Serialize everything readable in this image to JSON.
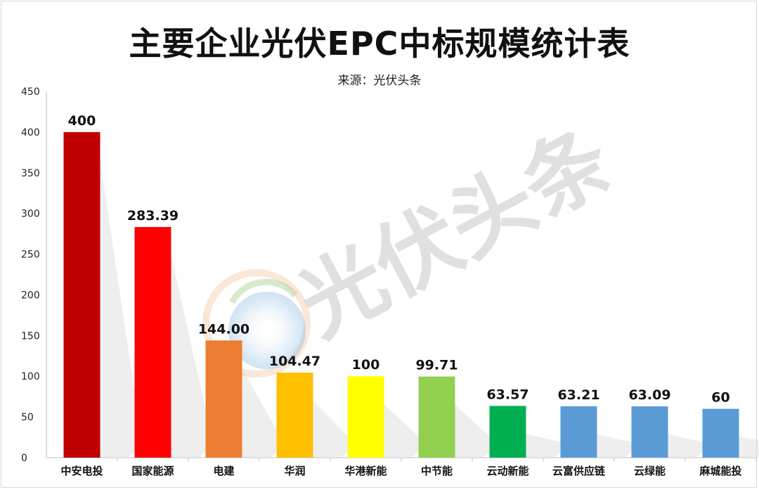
{
  "chart_data": {
    "type": "bar",
    "title": "主要企业光伏EPC中标规模统计表",
    "subtitle": "来源：光伏头条",
    "watermark": "光伏头条",
    "categories": [
      "中安电投",
      "国家能源",
      "电建",
      "华润",
      "华港新能",
      "中节能",
      "云动新能",
      "云富供应链",
      "云绿能",
      "麻城能投"
    ],
    "values": [
      400,
      283.39,
      144.0,
      104.47,
      100,
      99.71,
      63.57,
      63.21,
      63.09,
      60
    ],
    "value_labels": [
      "400",
      "283.39",
      "144.00",
      "104.47",
      "100",
      "99.71",
      "63.57",
      "63.21",
      "63.09",
      "60"
    ],
    "colors": [
      "#c00000",
      "#ff0000",
      "#ed7d31",
      "#ffc000",
      "#ffff00",
      "#92d050",
      "#00b050",
      "#5b9bd5",
      "#5b9bd5",
      "#5b9bd5"
    ],
    "ylim": [
      0,
      450
    ],
    "yticks": [
      0,
      50,
      100,
      150,
      200,
      250,
      300,
      350,
      400,
      450
    ],
    "xlabel": "",
    "ylabel": "",
    "grid": false,
    "legend": "none"
  }
}
